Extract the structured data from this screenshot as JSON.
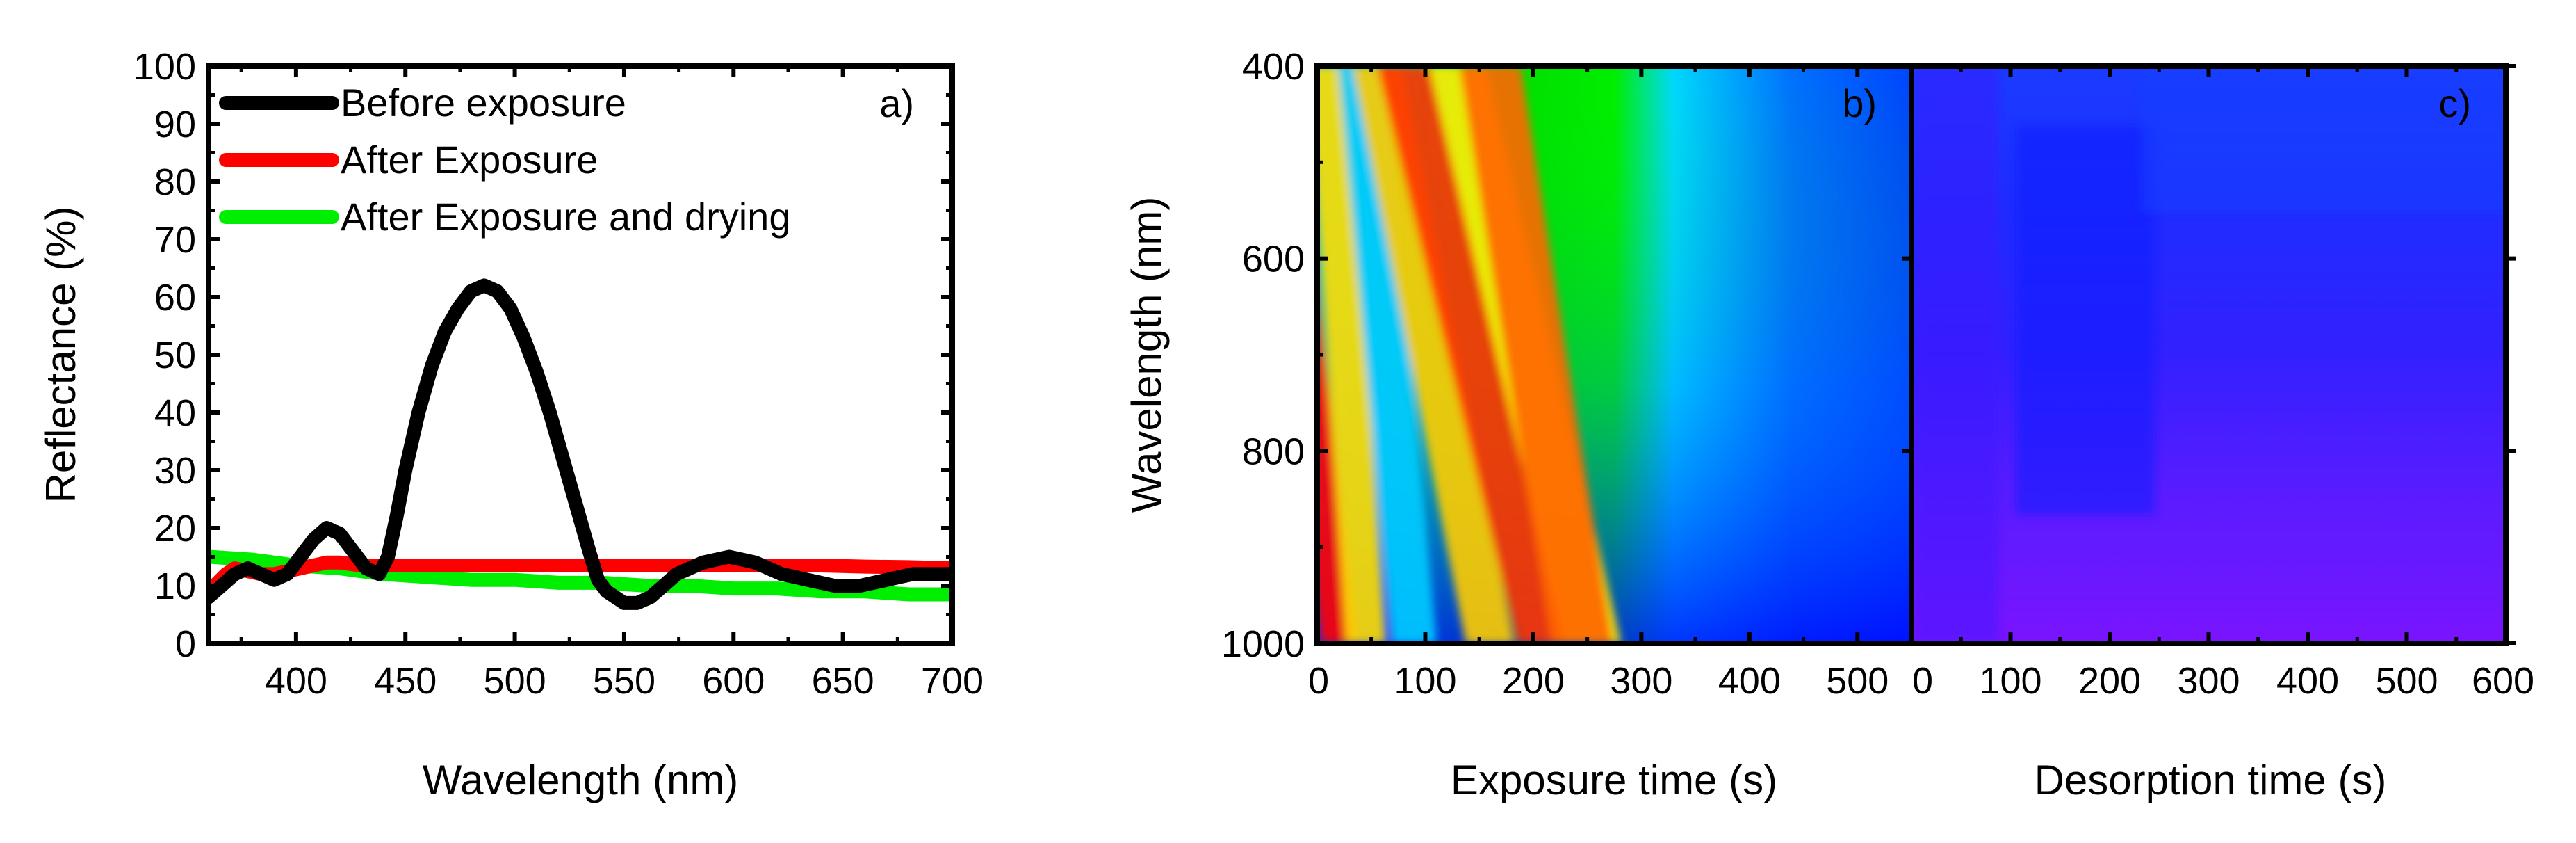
{
  "chart_data": [
    {
      "type": "line",
      "panel_label": "a)",
      "xlabel": "Wavelength (nm)",
      "ylabel": "Reflectance (%)",
      "xlim": [
        360,
        700
      ],
      "ylim": [
        0,
        100
      ],
      "xticks": [
        400,
        450,
        500,
        550,
        600,
        650,
        700
      ],
      "yticks": [
        0,
        10,
        20,
        30,
        40,
        50,
        60,
        70,
        80,
        90,
        100
      ],
      "legend_position": "top-left",
      "series": [
        {
          "name": "Before exposure",
          "color": "#000000",
          "x": [
            360,
            366,
            372,
            378,
            384,
            390,
            396,
            402,
            408,
            414,
            420,
            426,
            432,
            438,
            442,
            446,
            450,
            456,
            462,
            468,
            474,
            480,
            486,
            492,
            498,
            504,
            510,
            516,
            522,
            528,
            534,
            538,
            542,
            546,
            550,
            556,
            562,
            568,
            574,
            580,
            586,
            592,
            598,
            604,
            610,
            616,
            622,
            628,
            634,
            640,
            646,
            652,
            658,
            664,
            670,
            676,
            682,
            688,
            694,
            700
          ],
          "y": [
            8,
            10,
            12,
            13,
            12,
            11,
            12,
            15,
            18,
            20,
            19,
            16,
            13,
            12,
            15,
            22,
            30,
            40,
            48,
            54,
            58,
            61,
            62,
            61,
            58,
            53,
            47,
            40,
            32,
            24,
            16,
            11,
            9,
            8,
            7,
            7,
            8,
            10,
            12,
            13,
            14,
            14.5,
            15,
            14.5,
            14,
            13,
            12,
            11.5,
            11,
            10.5,
            10,
            10,
            10,
            10.5,
            11,
            11.5,
            12,
            12,
            12,
            12
          ]
        },
        {
          "name": "After Exposure",
          "color": "#ff0000",
          "x": [
            360,
            364,
            368,
            372,
            378,
            384,
            390,
            396,
            402,
            408,
            414,
            420,
            430,
            440,
            460,
            480,
            500,
            520,
            540,
            560,
            580,
            600,
            620,
            640,
            660,
            680,
            700
          ],
          "y": [
            9,
            10.5,
            12,
            13,
            12.5,
            12,
            12,
            12.5,
            13,
            13.5,
            14,
            14,
            13.5,
            13.5,
            13.5,
            13.5,
            13.5,
            13.5,
            13.5,
            13.5,
            13.5,
            13.5,
            13.5,
            13.5,
            13.3,
            13.2,
            13
          ]
        },
        {
          "name": "After Exposure and drying",
          "color": "#00ee00",
          "x": [
            360,
            380,
            400,
            420,
            440,
            460,
            480,
            500,
            520,
            540,
            560,
            580,
            600,
            620,
            640,
            660,
            680,
            700
          ],
          "y": [
            15,
            14.5,
            13.5,
            13,
            12,
            11.5,
            11,
            11,
            10.5,
            10.5,
            10,
            10,
            9.5,
            9.5,
            9,
            9,
            8.5,
            8.5
          ]
        }
      ]
    },
    {
      "type": "heatmap",
      "panel_label": "b)",
      "xlabel": "Exposure time (s)",
      "ylabel": "Wavelength (nm)",
      "xlim": [
        0,
        550
      ],
      "ylim": [
        400,
        1000
      ],
      "xticks": [
        0,
        100,
        200,
        300,
        400,
        500
      ],
      "xtick_labels": [
        "0",
        "100",
        "200",
        "300",
        "400",
        "500"
      ],
      "yticks": [
        400,
        600,
        800,
        1000
      ],
      "colormap": [
        "#ff0000",
        "#ffff00",
        "#00ff00",
        "#00ffff",
        "#0088ff",
        "#0000ff",
        "#8800ff"
      ],
      "fringes": [
        {
          "t_at_1000nm": 20,
          "t_at_400nm": -40,
          "color": "#ff0000"
        },
        {
          "t_at_1000nm": 45,
          "t_at_400nm": 10,
          "color": "#ffdd00"
        },
        {
          "t_at_1000nm": 90,
          "t_at_400nm": 40,
          "color": "#00ccff"
        },
        {
          "t_at_1000nm": 160,
          "t_at_400nm": 55,
          "color": "#ffcc00"
        },
        {
          "t_at_1000nm": 210,
          "t_at_400nm": 80,
          "color": "#ff3300"
        },
        {
          "t_at_1000nm": 255,
          "t_at_400nm": 130,
          "color": "#ffee00"
        },
        {
          "t_at_1000nm": 245,
          "t_at_400nm": 160,
          "color": "#ff6600"
        }
      ]
    },
    {
      "type": "heatmap",
      "panel_label": "c)",
      "xlabel": "Desorption time (s)",
      "ylabel": "",
      "xlim": [
        0,
        600
      ],
      "ylim": [
        400,
        1000
      ],
      "xticks": [
        0,
        100,
        200,
        300,
        400,
        500,
        600
      ],
      "xtick_labels": [
        "0",
        "100",
        "200",
        "300",
        "400",
        "500",
        "600"
      ],
      "colormap": [
        "#0000ff",
        "#2a00ff",
        "#5500ff",
        "#8800ff"
      ]
    }
  ]
}
